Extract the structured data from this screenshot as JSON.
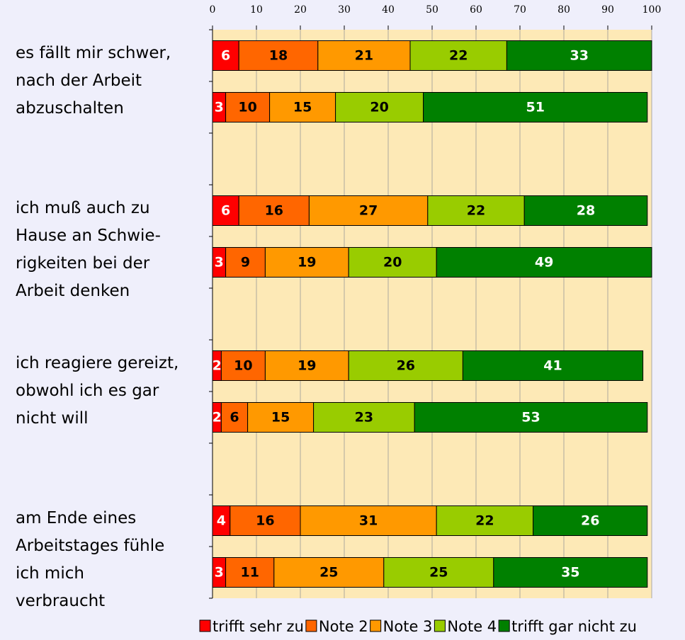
{
  "chart_data": {
    "type": "stacked_bar_horizontal",
    "groups": [
      "es fällt mir schwer,\nnach der Arbeit\nabzuschalten",
      "ich muß auch zu\nHause an Schwie-\nrigkeiten bei der\nArbeit denken",
      "ich reagiere gereizt,\nobwohl ich es gar\nnicht will",
      "am Ende eines\nArbeitstages fühle\nich mich\nverbraucht"
    ],
    "xlim": [
      0,
      100
    ],
    "xticks": [
      0,
      10,
      20,
      30,
      40,
      50,
      60,
      70,
      80,
      90,
      100
    ],
    "grid": true,
    "series": [
      {
        "name": "trifft sehr zu",
        "color": "#ff0000",
        "label_color": "#ffffff",
        "values": [
          6,
          3,
          6,
          3,
          2,
          2,
          4,
          3
        ]
      },
      {
        "name": "Note 2",
        "color": "#ff6600",
        "label_color": "#000000",
        "values": [
          18,
          10,
          16,
          9,
          10,
          6,
          16,
          11
        ]
      },
      {
        "name": "Note 3",
        "color": "#ff9900",
        "label_color": "#000000",
        "values": [
          21,
          15,
          27,
          19,
          19,
          15,
          31,
          25
        ]
      },
      {
        "name": "Note 4",
        "color": "#99cc00",
        "label_color": "#000000",
        "values": [
          22,
          20,
          22,
          20,
          26,
          23,
          22,
          25
        ]
      },
      {
        "name": "trifft gar nicht zu",
        "color": "#008000",
        "label_color": "#ffffff",
        "values": [
          33,
          51,
          28,
          49,
          41,
          53,
          26,
          35
        ]
      }
    ]
  }
}
